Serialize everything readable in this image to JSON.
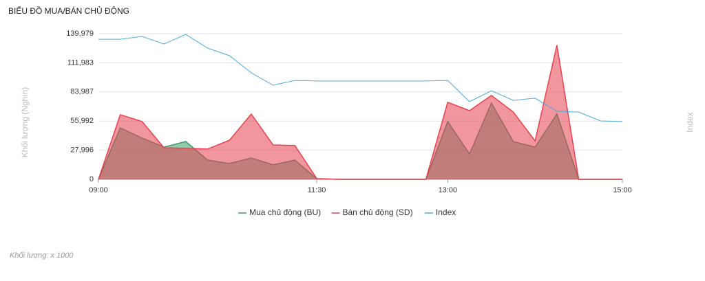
{
  "chart_data": {
    "type": "area",
    "title": "BIỂU ĐỒ MUA/BÁN CHỦ ĐỘNG",
    "y_label": "Khối lượng (Nghìn)",
    "y2_label": "Index",
    "footnote": "Khối lượng: x 1000",
    "x": [
      "09:00",
      "09:15",
      "09:30",
      "09:45",
      "10:00",
      "10:15",
      "10:30",
      "10:45",
      "11:00",
      "11:15",
      "11:30",
      "11:45",
      "12:00",
      "12:15",
      "12:30",
      "12:45",
      "13:00",
      "13:15",
      "13:30",
      "13:45",
      "14:00",
      "14:15",
      "14:30",
      "14:45",
      "15:00"
    ],
    "xlim": [
      "09:00",
      "15:00"
    ],
    "xticks": [
      "09:00",
      "11:30",
      "13:00",
      "15:00"
    ],
    "ylim": [
      0,
      139979
    ],
    "yticks": [
      0,
      {
        "value": 27996,
        "label": "27,996"
      },
      {
        "value": 55992,
        "label": "55,992"
      },
      {
        "value": 83987,
        "label": "83,987"
      },
      {
        "value": 111983,
        "label": "111,983"
      },
      {
        "value": 139979,
        "label": "139,979"
      }
    ],
    "y2lim": [
      0,
      100
    ],
    "grid": true,
    "legend": "bottom",
    "series": [
      {
        "name": "Mua chủ động (BU)",
        "color": "#3a9a6a",
        "values": [
          0,
          49500,
          39600,
          31000,
          36300,
          18500,
          15200,
          20500,
          13900,
          18500,
          500,
          0,
          0,
          0,
          0,
          0,
          55500,
          24400,
          73300,
          36300,
          31000,
          62700,
          0,
          0,
          0
        ]
      },
      {
        "name": "Bán chủ động (SD)",
        "color": "#e8404f",
        "values": [
          0,
          62100,
          55500,
          30400,
          29700,
          29100,
          37600,
          62700,
          33000,
          32400,
          700,
          0,
          0,
          0,
          0,
          0,
          74000,
          66000,
          80600,
          64700,
          37000,
          128800,
          0,
          0,
          0
        ]
      },
      {
        "name": "Index",
        "color": "#4aa8e0",
        "axis": "y2",
        "values": [
          96.2,
          96.2,
          98.1,
          92.9,
          99.5,
          90.1,
          84.9,
          73.1,
          64.6,
          67.9,
          67.5,
          67.5,
          67.5,
          67.5,
          67.5,
          67.5,
          67.9,
          53.3,
          60.8,
          54.2,
          55.7,
          46.7,
          46.2,
          40.1,
          39.6
        ]
      }
    ]
  }
}
